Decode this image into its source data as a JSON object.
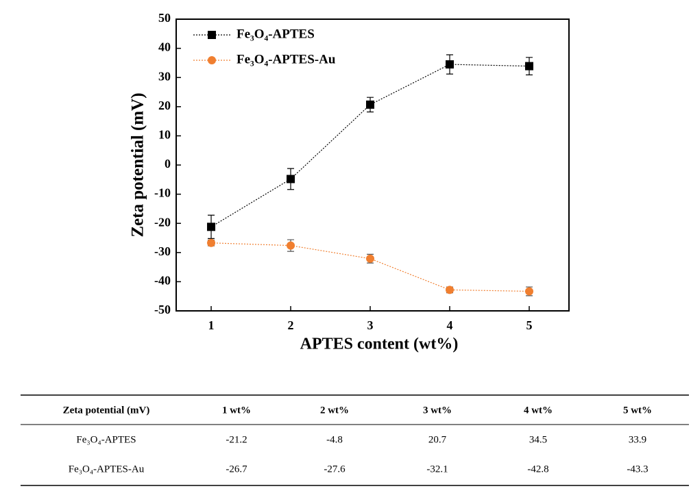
{
  "chart_data": {
    "type": "line",
    "xlabel": "APTES content (wt%)",
    "ylabel": "Zeta potential (mV)",
    "x": [
      1,
      2,
      3,
      4,
      5
    ],
    "series": [
      {
        "name": "Fe₃O₄-APTES",
        "color": "#000000",
        "marker": "square",
        "values": [
          -21.2,
          -4.8,
          20.7,
          34.5,
          33.9
        ],
        "errors": [
          4,
          3.6,
          2.5,
          3.3,
          3
        ]
      },
      {
        "name": "Fe₃O₄-APTES-Au",
        "color": "#f07f30",
        "marker": "circle",
        "values": [
          -26.7,
          -27.6,
          -32.1,
          -42.8,
          -43.3
        ],
        "errors": [
          1,
          2,
          1.5,
          1,
          1.5
        ]
      }
    ],
    "xlim": [
      0.56,
      5.5
    ],
    "xticks": [
      1,
      2,
      3,
      4,
      5
    ],
    "ylim": [
      -50,
      50
    ],
    "yticks": [
      -50,
      -40,
      -30,
      -20,
      -10,
      0,
      10,
      20,
      30,
      40,
      50
    ],
    "legend": "upper left"
  },
  "table": {
    "header": [
      "Zeta potential (mV)",
      "1 wt%",
      "2 wt%",
      "3 wt%",
      "4 wt%",
      "5 wt%"
    ],
    "rows": [
      [
        "Fe₃O₄-APTES",
        -21.2,
        -4.8,
        20.7,
        34.5,
        33.9
      ],
      [
        "Fe₃O₄-APTES-Au",
        -26.7,
        -27.6,
        -32.1,
        -42.8,
        -43.3
      ]
    ]
  }
}
